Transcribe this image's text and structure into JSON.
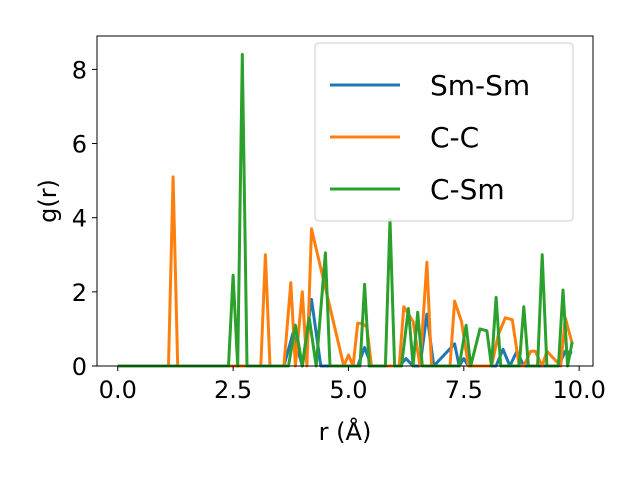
{
  "chart_data": {
    "type": "line",
    "xlabel": "r (Å)",
    "ylabel": "g(r)",
    "xlim": [
      -0.45,
      10.3
    ],
    "ylim": [
      0,
      8.9
    ],
    "xticks": [
      0.0,
      2.5,
      5.0,
      7.5,
      10.0
    ],
    "xtick_labels": [
      "0.0",
      "2.5",
      "5.0",
      "7.5",
      "10.0"
    ],
    "yticks": [
      0,
      2,
      4,
      6,
      8
    ],
    "ytick_labels": [
      "0",
      "2",
      "4",
      "6",
      "8"
    ],
    "grid": false,
    "legend_position": "top-right",
    "series": [
      {
        "name": "Sm-Sm",
        "color": "#1f77b4",
        "x": [
          0.0,
          3.6,
          3.8,
          4.0,
          4.2,
          4.4,
          5.2,
          5.35,
          5.5,
          6.1,
          6.25,
          6.4,
          6.55,
          6.7,
          6.85,
          7.3,
          7.4,
          7.5,
          7.6,
          8.2,
          8.35,
          8.5,
          8.65,
          8.8,
          9.55,
          9.7,
          9.85
        ],
        "y": [
          0.0,
          0.0,
          0.9,
          0.0,
          1.8,
          0.0,
          0.0,
          0.5,
          0.0,
          0.0,
          0.2,
          0.0,
          0.0,
          1.4,
          0.0,
          0.6,
          0.0,
          0.2,
          0.0,
          0.0,
          0.45,
          0.0,
          0.4,
          0.0,
          0.0,
          0.4,
          0.35
        ]
      },
      {
        "name": "C-C",
        "color": "#ff7f0e",
        "x": [
          0.0,
          1.1,
          1.2,
          1.3,
          3.1,
          3.2,
          3.3,
          3.6,
          3.75,
          3.85,
          4.0,
          4.1,
          4.2,
          4.9,
          5.0,
          5.1,
          5.2,
          5.3,
          5.4,
          5.5,
          6.1,
          6.2,
          6.4,
          6.55,
          6.7,
          6.8,
          7.2,
          7.3,
          7.45,
          7.6,
          8.1,
          8.25,
          8.4,
          8.55,
          8.7,
          8.8,
          8.95,
          9.05,
          9.2,
          9.3,
          9.6,
          9.7,
          9.85
        ],
        "y": [
          0.0,
          0.0,
          5.1,
          0.0,
          0.0,
          3.0,
          0.0,
          0.0,
          2.25,
          0.0,
          2.0,
          0.0,
          3.7,
          0.0,
          0.3,
          0.0,
          1.15,
          1.15,
          1.05,
          0.0,
          0.0,
          1.6,
          1.2,
          0.0,
          2.8,
          0.0,
          0.0,
          1.75,
          1.2,
          0.0,
          0.0,
          0.85,
          1.3,
          1.25,
          0.0,
          0.0,
          0.4,
          0.4,
          0.0,
          0.4,
          0.0,
          1.3,
          0.6
        ]
      },
      {
        "name": "C-Sm",
        "color": "#2ca02c",
        "x": [
          0.0,
          2.4,
          2.5,
          2.6,
          2.7,
          2.8,
          3.7,
          3.85,
          4.0,
          4.15,
          4.3,
          4.5,
          4.6,
          5.25,
          5.35,
          5.45,
          5.8,
          5.9,
          6.0,
          6.15,
          6.3,
          6.4,
          6.5,
          6.6,
          7.4,
          7.55,
          7.65,
          7.85,
          8.0,
          8.1,
          8.2,
          8.3,
          8.7,
          8.8,
          8.9,
          9.1,
          9.2,
          9.3,
          9.55,
          9.65,
          9.75,
          9.85
        ],
        "y": [
          0.0,
          0.0,
          2.45,
          0.0,
          8.4,
          0.0,
          0.0,
          1.1,
          0.0,
          1.3,
          0.0,
          3.05,
          0.0,
          0.0,
          2.2,
          0.0,
          0.0,
          3.95,
          0.0,
          0.0,
          1.55,
          0.0,
          1.45,
          0.0,
          0.0,
          1.1,
          0.0,
          1.0,
          0.95,
          0.0,
          1.85,
          0.0,
          0.0,
          1.6,
          0.0,
          0.0,
          3.0,
          0.0,
          0.0,
          2.05,
          0.0,
          0.65
        ]
      }
    ]
  }
}
